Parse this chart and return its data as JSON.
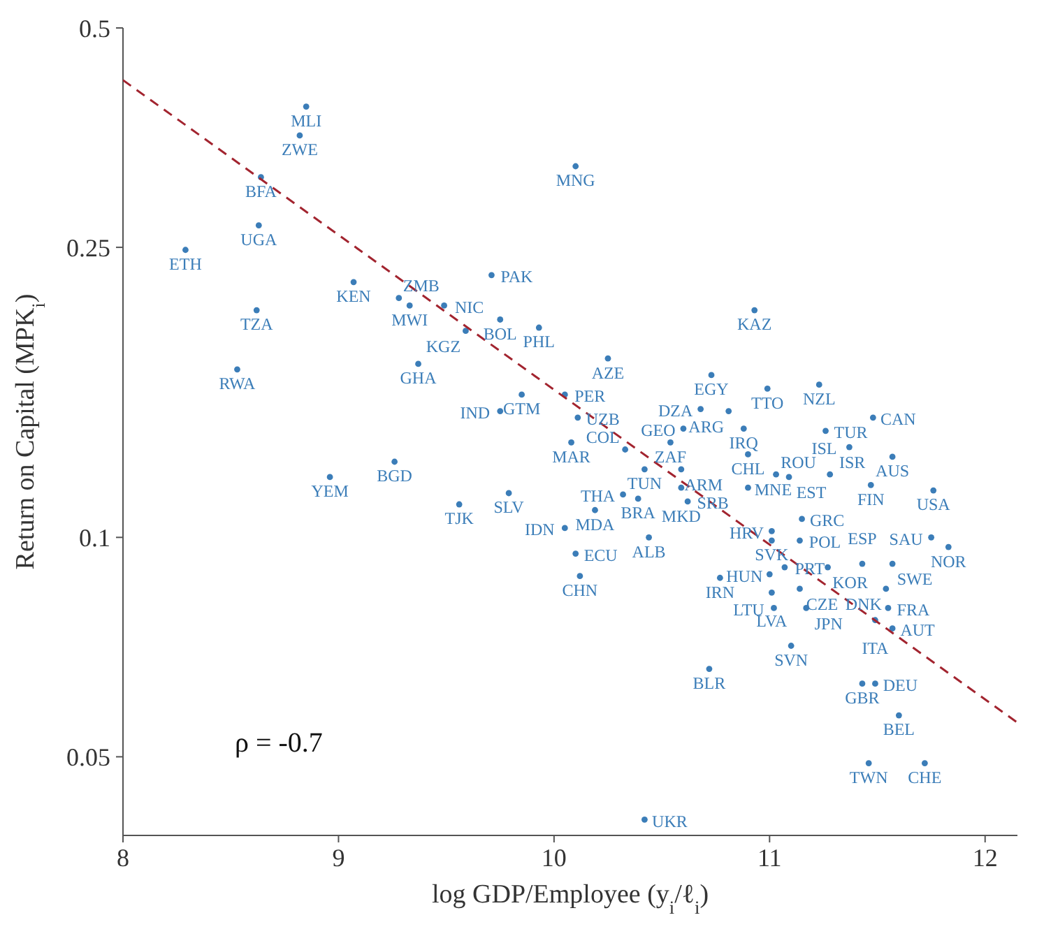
{
  "chart_data": {
    "type": "scatter",
    "xlabel": "log GDP/Employee (y$_{i}$/ℓ$_{i}$)",
    "ylabel": "Return on Capital (MPK$_{i}$)",
    "xlim": [
      8,
      12.15
    ],
    "ylim": [
      0.039,
      0.5
    ],
    "xticks": [
      8,
      9,
      10,
      11,
      12
    ],
    "yticks": [
      0.05,
      0.1,
      0.25,
      0.5
    ],
    "log": "y",
    "annotations": [
      "ρ = -0.7"
    ],
    "series": [
      {
        "color": "#3b7db8",
        "marker": "circle",
        "x": [
          8.85,
          8.82,
          8.64,
          8.63,
          8.29,
          9.07,
          9.28,
          9.33,
          9.49,
          9.71,
          8.62,
          9.75,
          9.59,
          9.93,
          8.53,
          9.37,
          10.1,
          10.25,
          9.85,
          10.05,
          9.75,
          10.11,
          10.08,
          8.96,
          9.26,
          9.56,
          9.79,
          10.19,
          10.05,
          10.1,
          10.12,
          10.44,
          10.93,
          10.73,
          10.99,
          11.23,
          10.68,
          10.81,
          10.6,
          10.88,
          10.33,
          10.54,
          10.42,
          10.59,
          10.32,
          10.39,
          10.59,
          10.62,
          10.9,
          10.9,
          11.03,
          11.09,
          11.28,
          11.26,
          11.48,
          11.37,
          11.57,
          11.47,
          11.76,
          11.01,
          11.01,
          11.14,
          11.15,
          11.75,
          11.83,
          11.07,
          11.27,
          11.43,
          11.57,
          10.77,
          11.0,
          11.01,
          11.14,
          11.02,
          11.17,
          11.54,
          11.55,
          11.49,
          11.57,
          11.1,
          10.72,
          11.43,
          11.49,
          11.6,
          11.46,
          11.72,
          10.42
        ],
        "values": [
          0.39,
          0.356,
          0.312,
          0.268,
          0.248,
          0.224,
          0.213,
          0.208,
          0.208,
          0.229,
          0.205,
          0.199,
          0.192,
          0.194,
          0.17,
          0.173,
          0.323,
          0.176,
          0.157,
          0.157,
          0.149,
          0.146,
          0.135,
          0.121,
          0.127,
          0.111,
          0.115,
          0.109,
          0.103,
          0.095,
          0.0885,
          0.1,
          0.205,
          0.167,
          0.16,
          0.162,
          0.15,
          0.149,
          0.141,
          0.141,
          0.132,
          0.135,
          0.124,
          0.124,
          0.1145,
          0.113,
          0.117,
          0.112,
          0.117,
          0.13,
          0.122,
          0.121,
          0.122,
          0.14,
          0.146,
          0.133,
          0.129,
          0.118,
          0.116,
          0.102,
          0.099,
          0.099,
          0.106,
          0.1,
          0.097,
          0.091,
          0.091,
          0.092,
          0.092,
          0.088,
          0.089,
          0.084,
          0.085,
          0.08,
          0.08,
          0.085,
          0.08,
          0.077,
          0.075,
          0.071,
          0.066,
          0.063,
          0.063,
          0.057,
          0.049,
          0.049,
          0.041
        ],
        "value_labels": [
          "MLI",
          "ZWE",
          "BFA",
          "UGA",
          "ETH",
          "KEN",
          "ZMB",
          "MWI",
          "NIC",
          "PAK",
          "TZA",
          "BOL",
          "KGZ",
          "PHL",
          "RWA",
          "GHA",
          "MNG",
          "AZE",
          "GTM",
          "PER",
          "IND",
          "UZB",
          "MAR",
          "YEM",
          "BGD",
          "TJK",
          "SLV",
          "MDA",
          "IDN",
          "ECU",
          "CHN",
          "ALB",
          "KAZ",
          "EGY",
          "TTO",
          "NZL",
          "DZA",
          "ARG",
          "GEO",
          "IRQ",
          "COL",
          "ZAF",
          "TUN",
          "ARM",
          "THA",
          "BRA",
          "MKD",
          "SRB",
          "MNE",
          "CHL",
          "ROU",
          "EST",
          "ISR",
          "TUR",
          "CAN",
          "ISL",
          "AUS",
          "FIN",
          "USA",
          "HRV",
          "SVK",
          "POL",
          "GRC",
          "SAU",
          "NOR",
          "PRT",
          "KOR",
          "ESP",
          "SWE",
          "IRN",
          "HUN",
          "LVA",
          "CZE",
          "LTU",
          "JPN",
          "DNK",
          "FRA",
          "ITA",
          "AUT",
          "SVN",
          "BLR",
          "GBR",
          "DEU",
          "BEL",
          "TWN",
          "CHE",
          "UKR"
        ]
      },
      {
        "type": "line",
        "marker": "none",
        "color": "#a2242f",
        "line_style": "dashed",
        "x": [
          8,
          12.15
        ],
        "values": [
          0.424,
          0.0557
        ]
      }
    ]
  }
}
